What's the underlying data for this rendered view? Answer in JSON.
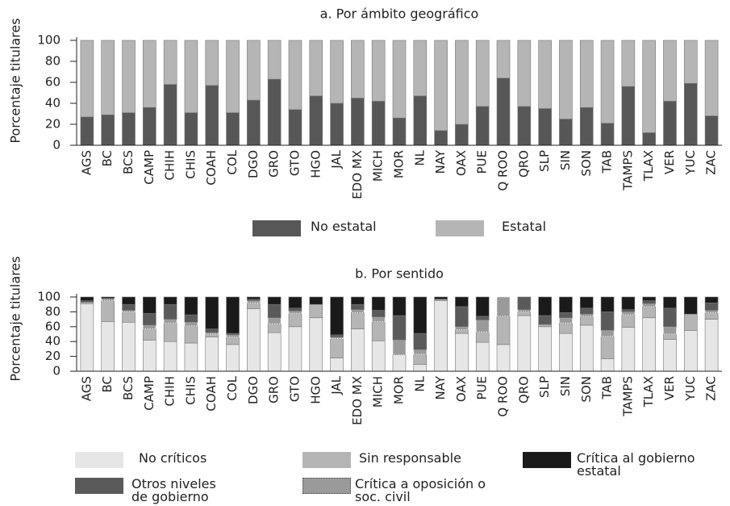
{
  "chart_data": [
    {
      "type": "bar",
      "stacked": true,
      "title": "a. Por ámbito geográfico",
      "y_label": "Porcentaje titulares",
      "categories": [
        "AGS",
        "BC",
        "BCS",
        "CAMP",
        "CHIH",
        "CHIS",
        "COAH",
        "COL",
        "DGO",
        "GRO",
        "GTO",
        "HGO",
        "JAL",
        "EDO MX",
        "MICH",
        "MOR",
        "NL",
        "NAY",
        "OAX",
        "PUE",
        "Q ROO",
        "QRO",
        "SLP",
        "SIN",
        "SON",
        "TAB",
        "TAMPS",
        "TLAX",
        "VER",
        "YUC",
        "ZAC"
      ],
      "series": [
        {
          "name": "No estatal",
          "color": "#575757",
          "values": [
            27,
            29,
            31,
            36,
            58,
            31,
            57,
            31,
            43,
            63,
            34,
            47,
            40,
            45,
            42,
            26,
            47,
            14,
            20,
            37,
            64,
            37,
            35,
            25,
            36,
            21,
            56,
            12,
            42,
            59,
            28
          ]
        },
        {
          "name": "Estatal",
          "color": "#b5b5b5",
          "values": [
            73,
            71,
            69,
            64,
            42,
            69,
            43,
            69,
            57,
            37,
            66,
            53,
            60,
            55,
            58,
            74,
            53,
            86,
            80,
            63,
            36,
            63,
            65,
            75,
            64,
            79,
            44,
            88,
            58,
            41,
            72
          ]
        }
      ],
      "ylim": [
        0,
        100
      ],
      "yticks": [
        0,
        20,
        40,
        60,
        80,
        100
      ]
    },
    {
      "type": "bar",
      "stacked": true,
      "title": "b. Por sentido",
      "y_label": "Porcentaje titulares",
      "categories": [
        "AGS",
        "BC",
        "BCS",
        "CAMP",
        "CHIH",
        "CHIS",
        "COAH",
        "COL",
        "DGO",
        "GRO",
        "GTO",
        "HGO",
        "JAL",
        "EDO MX",
        "MICH",
        "MOR",
        "NL",
        "NAY",
        "OAX",
        "PUE",
        "Q ROO",
        "QRO",
        "SLP",
        "SIN",
        "SON",
        "TAB",
        "TAMPS",
        "TLAX",
        "VER",
        "YUC",
        "ZAC"
      ],
      "series": [
        {
          "name": "No críticos",
          "color": "#e6e6e6",
          "values": [
            91,
            67,
            66,
            42,
            40,
            38,
            46,
            36,
            84,
            52,
            60,
            72,
            18,
            57,
            41,
            22,
            9,
            95,
            51,
            39,
            36,
            75,
            60,
            51,
            62,
            17,
            59,
            72,
            43,
            55,
            70
          ]
        },
        {
          "name": "Sin responsable",
          "color": "#b5b5b5",
          "values": [
            2,
            28,
            14,
            15,
            25,
            23,
            4,
            10,
            8,
            12,
            18,
            18,
            26,
            22,
            26,
            0,
            14,
            2,
            5,
            14,
            38,
            5,
            3,
            14,
            12,
            30,
            17,
            15,
            7,
            22,
            9
          ]
        },
        {
          "name": "Crítica a oposición o soc. civil",
          "color": "#9a9a9a",
          "border": "dotted",
          "values": [
            0,
            3,
            2,
            5,
            5,
            5,
            2,
            3,
            3,
            8,
            3,
            0,
            2,
            4,
            6,
            20,
            6,
            0,
            4,
            16,
            26,
            3,
            0,
            7,
            3,
            8,
            4,
            4,
            10,
            0,
            3
          ]
        },
        {
          "name": "Otros niveles de gobierno",
          "color": "#5a5a5a",
          "values": [
            2,
            0,
            8,
            16,
            20,
            10,
            5,
            2,
            2,
            18,
            4,
            0,
            3,
            7,
            9,
            33,
            22,
            0,
            27,
            5,
            0,
            17,
            12,
            7,
            8,
            25,
            3,
            4,
            25,
            0,
            10
          ]
        },
        {
          "name": "Crítica al gobierno estatal",
          "color": "#1a1a1a",
          "values": [
            5,
            2,
            10,
            22,
            10,
            24,
            43,
            49,
            3,
            10,
            15,
            10,
            51,
            10,
            18,
            25,
            49,
            3,
            13,
            26,
            0,
            0,
            25,
            21,
            15,
            20,
            17,
            5,
            15,
            23,
            8
          ]
        }
      ],
      "ylim": [
        0,
        100
      ],
      "yticks": [
        0,
        20,
        40,
        60,
        80,
        100
      ]
    }
  ]
}
